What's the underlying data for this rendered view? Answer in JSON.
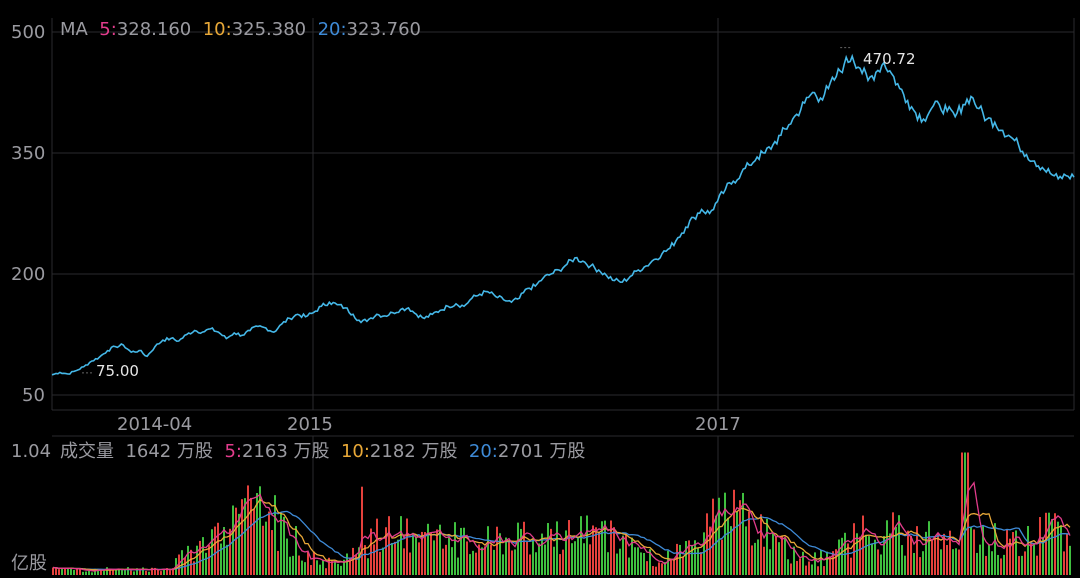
{
  "price_panel": {
    "legend": {
      "title": "MA",
      "ma5_key": "5:",
      "ma5_val": "328.160",
      "ma10_key": "10:",
      "ma10_val": "325.380",
      "ma20_key": "20:",
      "ma20_val": "323.760"
    },
    "yticks": [
      "500",
      "350",
      "200",
      "50"
    ],
    "xticks": [
      "2014-04",
      "2015",
      "2017"
    ],
    "high_label": "470.72",
    "low_label": "75.00"
  },
  "volume_panel": {
    "legend": {
      "title": "成交量",
      "current": "1642 万股",
      "ma5_key": "5:",
      "ma5_val": "2163 万股",
      "ma10_key": "10:",
      "ma10_val": "2182 万股",
      "ma20_key": "20:",
      "ma20_val": "2701 万股"
    },
    "ytop": "1.04",
    "yunit": "亿股"
  },
  "colors": {
    "price_line": "#45b8e8",
    "ma5": "#e23c8c",
    "ma10": "#e8a838",
    "ma20": "#3e8ad6",
    "up_bar": "#e5413c",
    "down_bar": "#3fbf3f",
    "grid": "#2a2a2e"
  },
  "chart_data": [
    {
      "type": "line",
      "name": "price",
      "ylim": [
        50,
        500
      ],
      "yticks": [
        500,
        350,
        200,
        50
      ],
      "xticks": [
        "2014-04",
        "2015",
        "2017"
      ],
      "series": [
        {
          "values": [
            75,
            78,
            76,
            80,
            85,
            92,
            97,
            105,
            110,
            112,
            103,
            105,
            98,
            110,
            118,
            120,
            117,
            125,
            130,
            128,
            132,
            128,
            120,
            127,
            124,
            130,
            135,
            133,
            128,
            138,
            145,
            150,
            147,
            152,
            160,
            165,
            162,
            158,
            150,
            140,
            144,
            150,
            148,
            152,
            156,
            158,
            150,
            145,
            150,
            155,
            160,
            163,
            160,
            170,
            175,
            178,
            172,
            168,
            165,
            170,
            182,
            185,
            195,
            200,
            205,
            212,
            220,
            216,
            210,
            205,
            198,
            192,
            190,
            197,
            205,
            210,
            218,
            225,
            232,
            245,
            258,
            270,
            280,
            275,
            290,
            305,
            315,
            325,
            335,
            345,
            350,
            360,
            372,
            385,
            398,
            412,
            425,
            418,
            430,
            445,
            460,
            470,
            455,
            440,
            450,
            462,
            448,
            430,
            415,
            400,
            392,
            405,
            410,
            402,
            395,
            410,
            420,
            405,
            392,
            388,
            378,
            370,
            360,
            348,
            340,
            332,
            325,
            318,
            322,
            320
          ]
        }
      ],
      "annotations": [
        {
          "text": "470.72",
          "value": 470.72
        },
        {
          "text": "75.00",
          "value": 75.0
        }
      ]
    },
    {
      "type": "bar",
      "name": "volume",
      "unit": "亿股",
      "ylim": [
        0,
        1.04
      ]
    }
  ]
}
